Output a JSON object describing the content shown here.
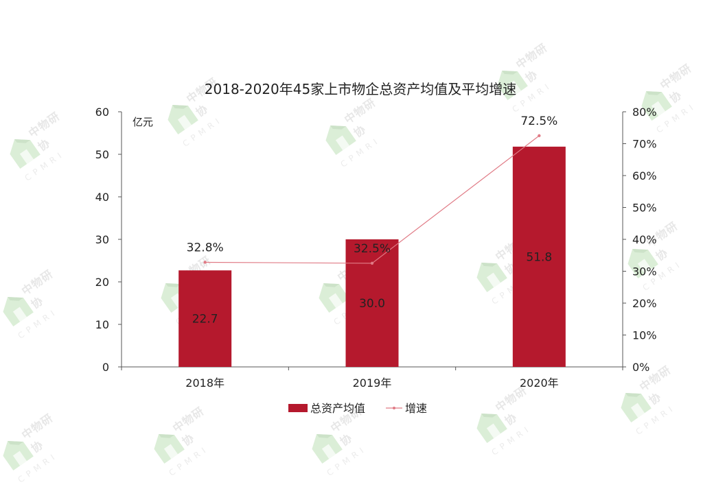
{
  "watermark": {
    "text": "中物研协",
    "sub": "CPMRI"
  },
  "chart_data": {
    "type": "bar",
    "title": "2018-2020年45家上市物企总资产均值及平均增速",
    "unit_label": "亿元",
    "categories": [
      "2018年",
      "2019年",
      "2020年"
    ],
    "series": [
      {
        "name": "总资产均值",
        "type": "bar",
        "axis": "left",
        "values": [
          22.7,
          30.0,
          51.8
        ],
        "labels": [
          "22.7",
          "30.0",
          "51.8"
        ],
        "color": "#b5192d"
      },
      {
        "name": "增速",
        "type": "line",
        "axis": "right",
        "values": [
          32.8,
          32.5,
          72.5
        ],
        "labels": [
          "32.8%",
          "32.5%",
          "72.5%"
        ],
        "color": "#e07a85"
      }
    ],
    "y_left": {
      "ylim": [
        0,
        60
      ],
      "ticks": [
        "0",
        "10",
        "20",
        "30",
        "40",
        "50",
        "60"
      ]
    },
    "y_right": {
      "ylim": [
        0,
        80
      ],
      "ticks": [
        "0%",
        "10%",
        "20%",
        "30%",
        "40%",
        "50%",
        "60%",
        "70%",
        "80%"
      ]
    },
    "legend": "bottom",
    "grid": false
  }
}
